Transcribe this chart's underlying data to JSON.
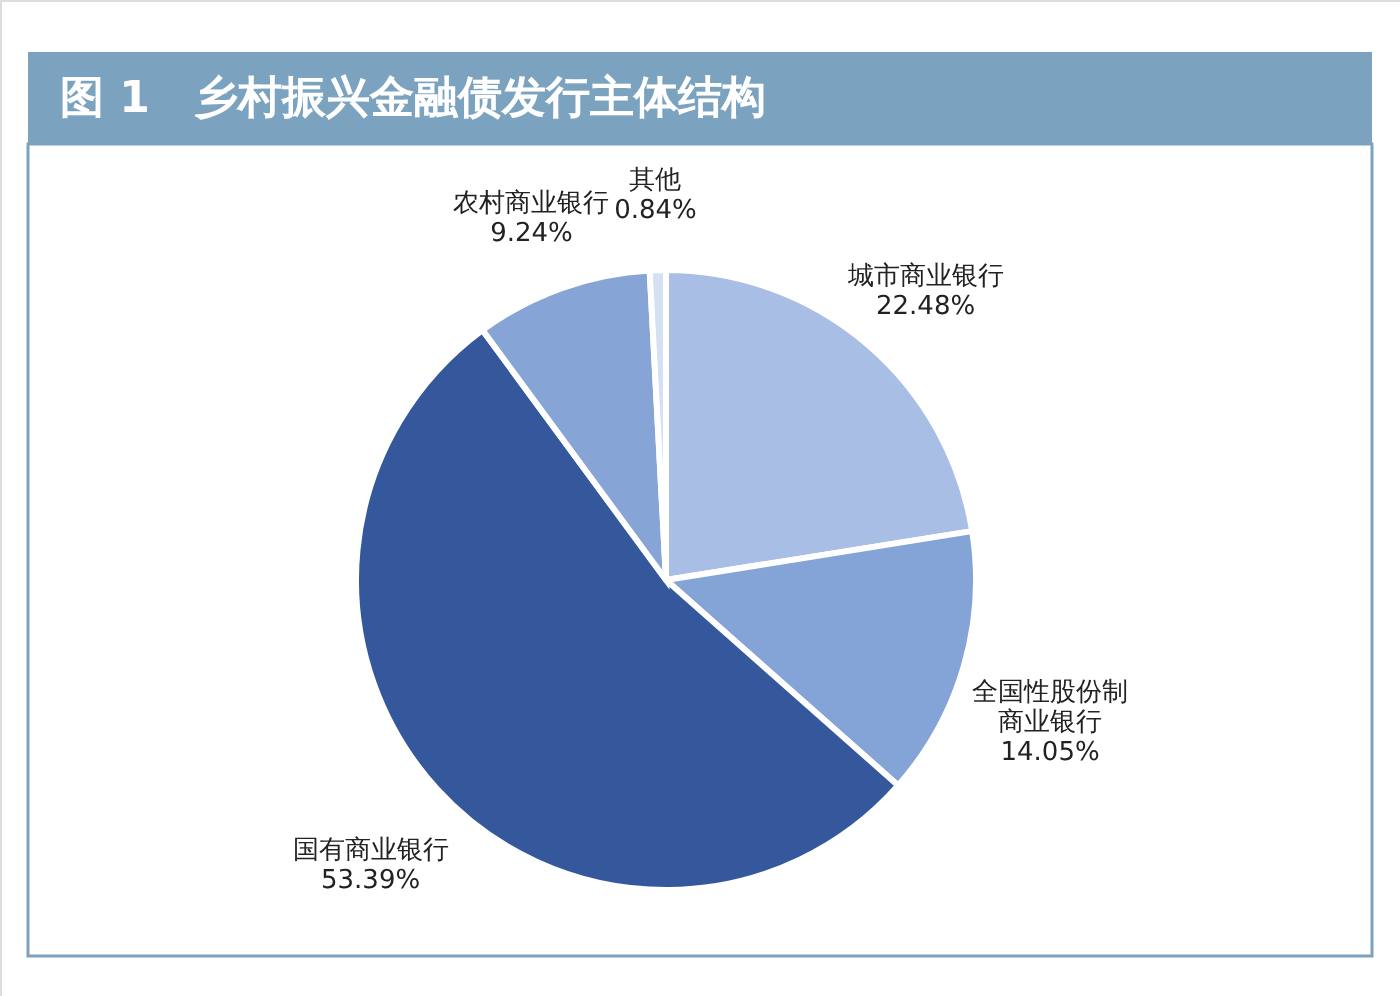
{
  "chart_data": {
    "type": "pie",
    "title": "图 1　乡村振兴金融债发行主体结构",
    "categories": [
      "城市商业银行",
      "全国性股份制商业银行",
      "国有商业银行",
      "农村商业银行",
      "其他"
    ],
    "values": [
      22.48,
      14.05,
      53.39,
      9.24,
      0.84
    ],
    "colors": [
      "#a9bee4",
      "#84a3d6",
      "#34589b",
      "#86a4d6",
      "#d5e0f2"
    ],
    "value_labels": [
      "22.48%",
      "14.05%",
      "53.39%",
      "9.24%",
      "0.84%"
    ]
  }
}
